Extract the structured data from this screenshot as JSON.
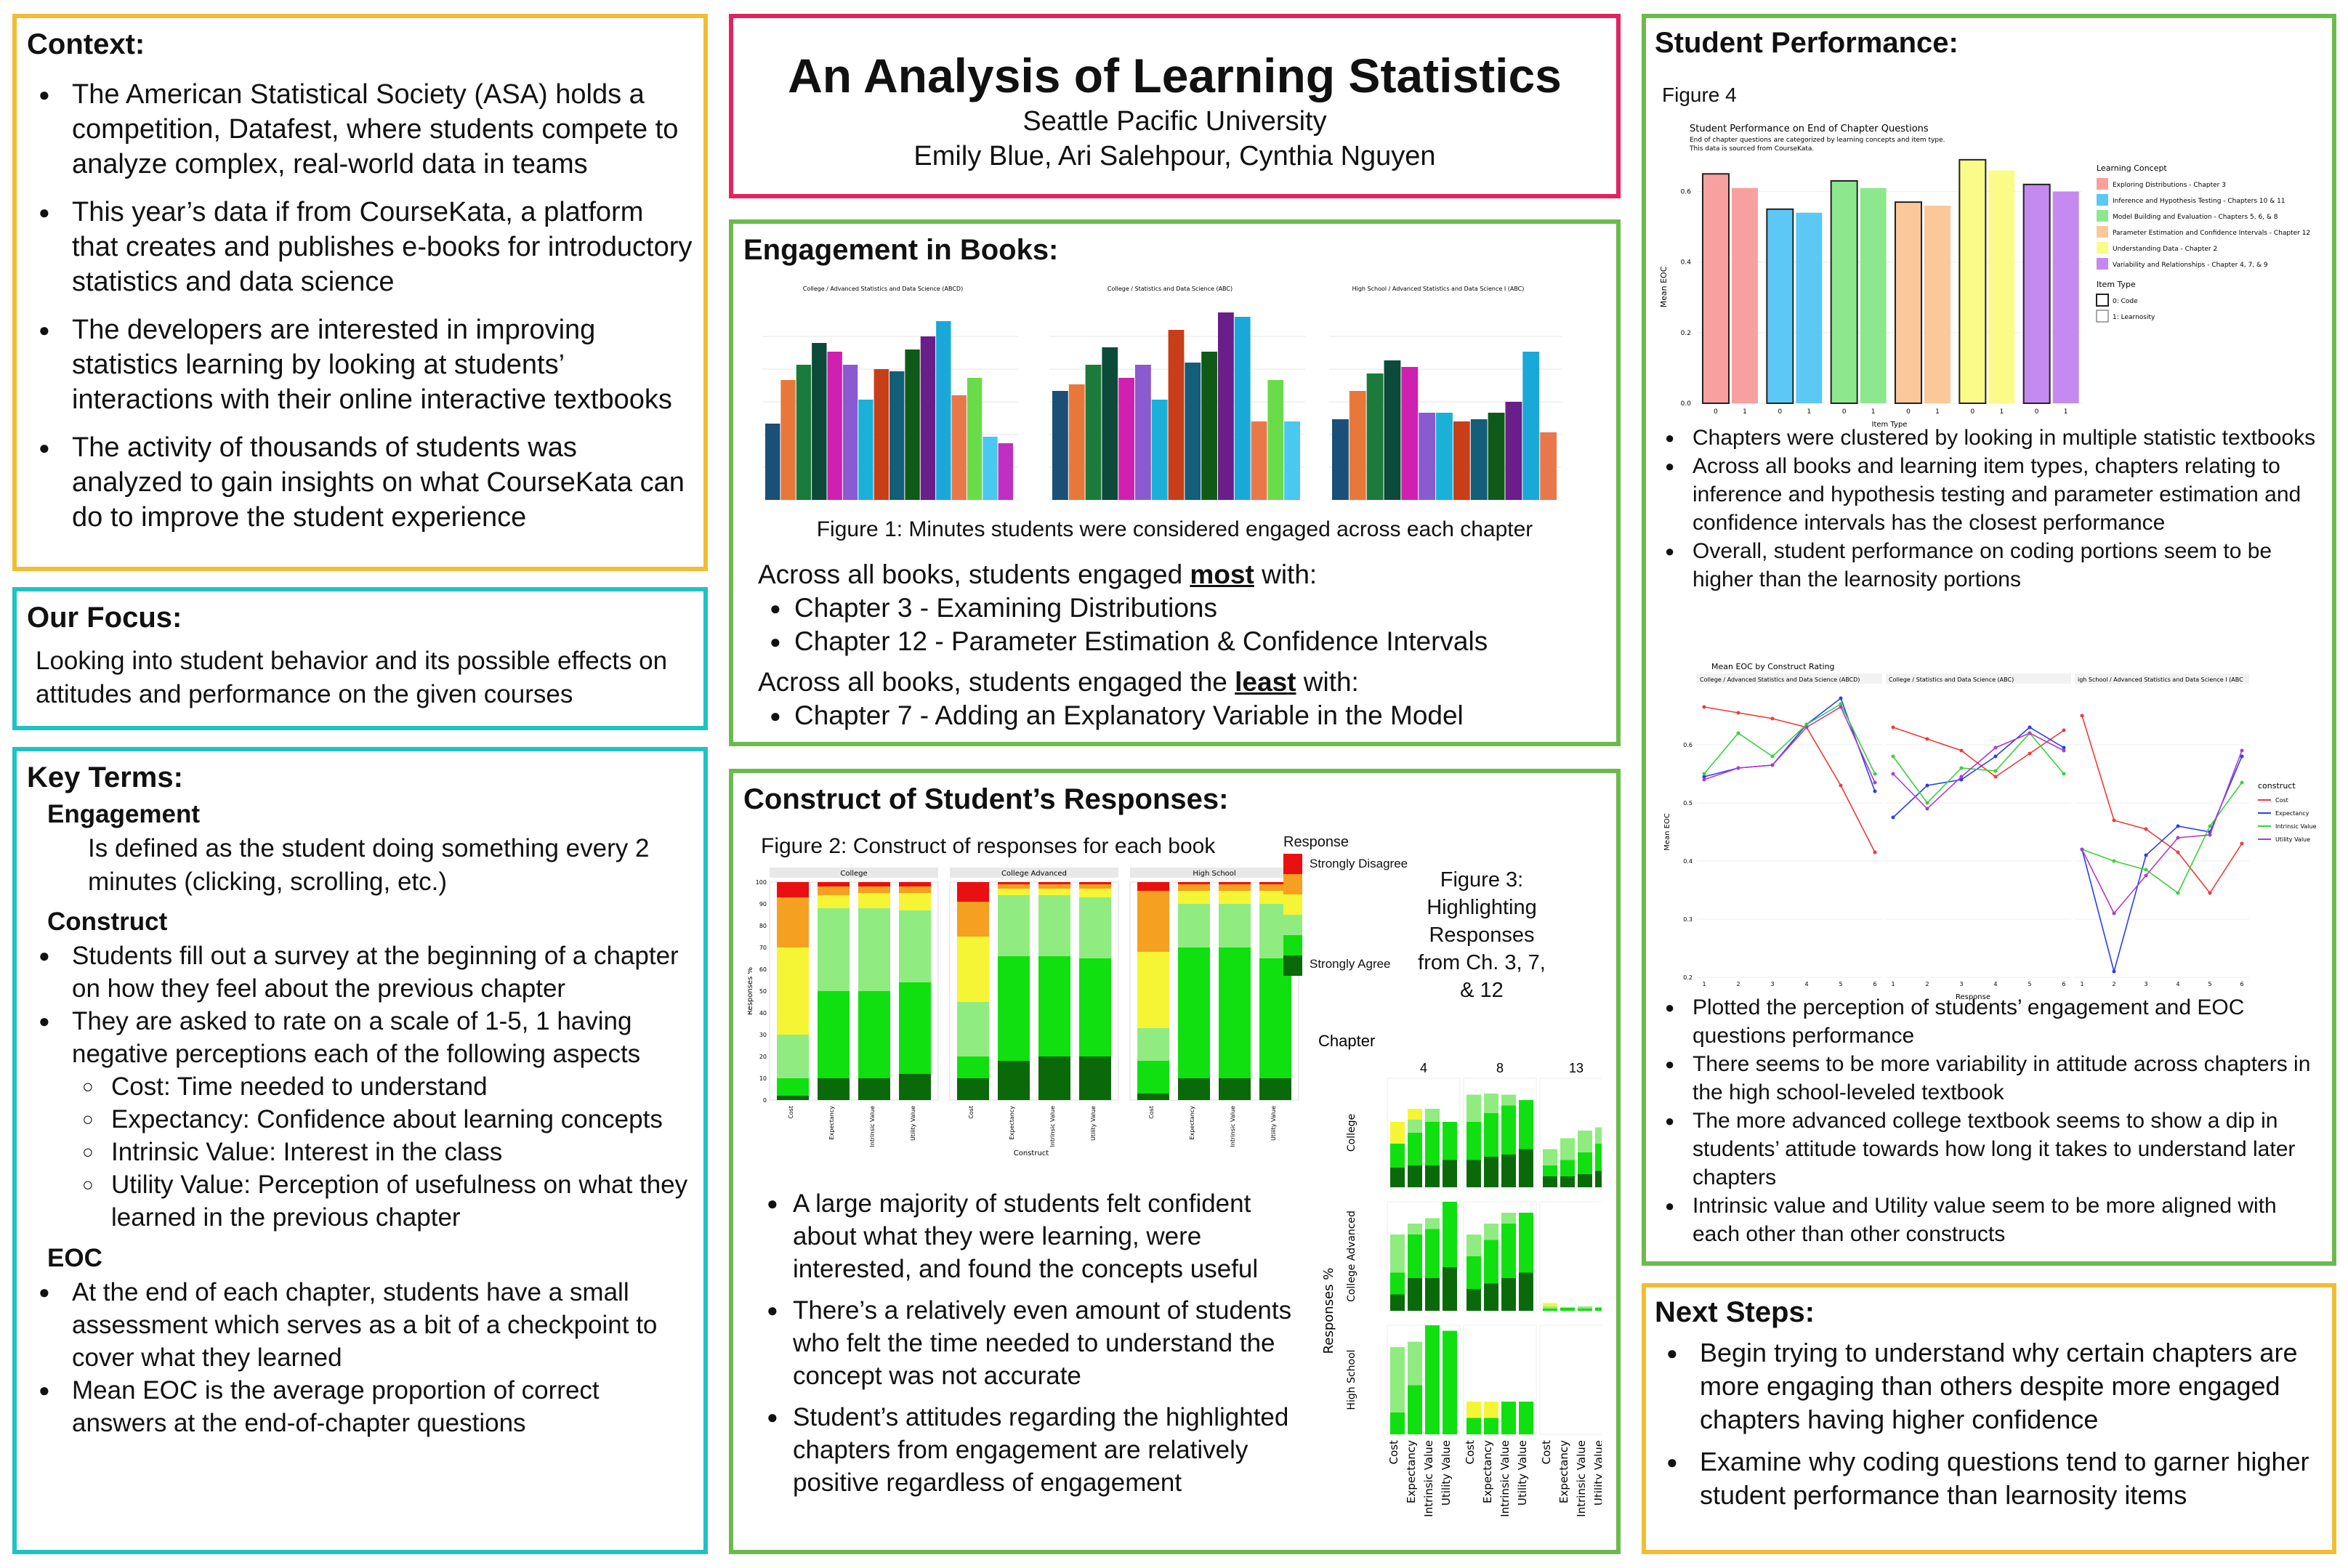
{
  "header": {
    "title": "An Analysis of Learning Statistics",
    "institution": "Seattle Pacific University",
    "authors": "Emily Blue, Ari Salehpour, Cynthia Nguyen"
  },
  "context": {
    "heading": "Context:",
    "bullets": [
      "The American Statistical Society (ASA) holds a competition, Datafest, where students compete to analyze complex, real-world data in teams",
      "This year’s data if from CourseKata, a platform that creates and publishes e-books for introductory statistics and data science",
      "The developers are interested in improving statistics learning by looking at students’ interactions with their online interactive textbooks",
      "The activity of thousands of students was analyzed to gain insights on what CourseKata can do to improve the student experience"
    ]
  },
  "focus": {
    "heading": "Our Focus:",
    "text": "Looking into student behavior and its possible effects on attitudes and performance on the given courses"
  },
  "key_terms": {
    "heading": "Key Terms:",
    "engagement_term": "Engagement",
    "engagement_def": "Is defined as the student doing something every 2 minutes (clicking, scrolling, etc.)",
    "construct_term": "Construct",
    "construct_bullets": [
      "Students fill out a survey at the beginning of a chapter on how they feel about the previous chapter",
      "They are asked to rate on a scale of 1-5, 1 having negative perceptions each of the following aspects"
    ],
    "construct_sub": [
      "Cost: Time needed to understand",
      "Expectancy: Confidence about learning concepts",
      "Intrinsic Value: Interest in the class",
      "Utility Value: Perception of usefulness on what they learned in the previous chapter"
    ],
    "eoc_term": "EOC",
    "eoc_bullets": [
      "At the end of each chapter, students have a small assessment which serves as a bit of a checkpoint to cover what they learned",
      "Mean EOC is the average proportion of correct answers at the end-of-chapter questions"
    ]
  },
  "engagement": {
    "heading": "Engagement in Books:",
    "figure_titles": [
      "College / Advanced Statistics and Data Science (ABCD)",
      "College / Statistics and Data Science (ABC)",
      "High School / Advanced Statistics and Data Science I (ABC)"
    ],
    "caption": "Figure 1: Minutes students were considered engaged across each chapter",
    "most_intro_pre": "Across all books, students engaged ",
    "most_word": "most",
    "most_intro_post": " with:",
    "most_items": [
      "Chapter 3 - Examining Distributions",
      "Chapter 12 -  Parameter Estimation & Confidence Intervals"
    ],
    "least_intro_pre": "Across all books, students engaged the ",
    "least_word": "least",
    "least_intro_post": " with:",
    "least_items": [
      "Chapter 7 - Adding an Explanatory Variable in the Model"
    ]
  },
  "construct": {
    "heading": "Construct of Student’s Responses:",
    "figure2_caption": "Figure 2: Construct of responses for each book",
    "legend_title": "Response",
    "legend_top": "Strongly Disagree",
    "legend_bottom": "Strongly Agree",
    "facets": [
      "College",
      "College Advanced",
      "High School"
    ],
    "constructs": [
      "Cost",
      "Expectancy",
      "Intrinsic Value",
      "Utility Value"
    ],
    "ylabel": "Responses %",
    "xlabel": "Construct",
    "yticks": [
      "0",
      "10",
      "20",
      "30",
      "40",
      "50",
      "60",
      "70",
      "80",
      "90",
      "100"
    ],
    "figure3_caption": "Figure 3: Highlighting Responses from Ch. 3, 7, & 12",
    "chapter_label": "Chapter",
    "chapters": [
      "4",
      "8",
      "13"
    ],
    "fig3_rows": [
      "College",
      "College Advanced",
      "High School"
    ],
    "fig3_ylabel": "Responses %",
    "bullets": [
      "A large majority of students felt confident about what they were learning, were interested, and found the concepts useful",
      "There’s a relatively even amount of students who felt the time needed to understand the concept was not accurate",
      "Student’s attitudes regarding the highlighted chapters from engagement are relatively positive regardless of engagement"
    ]
  },
  "performance": {
    "heading": "Student Performance:",
    "figure4_label": "Figure 4",
    "fig4_title": "Student Performance on End of Chapter Questions",
    "fig4_subtitle1": "End of chapter questions are categorized by learning concepts and item type.",
    "fig4_subtitle2": "This data is sourced from CourseKata.",
    "fig4_legend_title": "Learning Concept",
    "fig4_legend": [
      {
        "label": "Exploring Distributions - Chapter 3",
        "color": "#f8a0a0"
      },
      {
        "label": "Inference and Hypothesis Testing - Chapters 10 & 11",
        "color": "#5bc8f5"
      },
      {
        "label": "Model Building and Evaluation - Chapters 5, 6, & 8",
        "color": "#8de88d"
      },
      {
        "label": "Parameter Estimation and Confidence Intervals - Chapter 12",
        "color": "#fbc89a"
      },
      {
        "label": "Understanding Data - Chapter 2",
        "color": "#fbfb8a"
      },
      {
        "label": "Variability and Relationships - Chapter 4, 7, & 9",
        "color": "#c58af0"
      }
    ],
    "fig4_itemtype_title": "Item Type",
    "fig4_itemtypes": [
      "0: Code",
      "1: Learnosity"
    ],
    "fig4_ylabel": "Mean EOC",
    "fig4_xlabel": "Item Type",
    "fig4_yticks": [
      "0.0",
      "0.2",
      "0.4",
      "0.6"
    ],
    "fig4_xticks": [
      "0",
      "1"
    ],
    "bullets1": [
      "Chapters were clustered by looking in multiple statistic textbooks",
      "Across all books and learning item types, chapters relating to inference and hypothesis testing and parameter estimation and confidence intervals has the closest performance",
      "Overall, student performance on coding portions seem to be higher than the learnosity portions"
    ],
    "fig5_title": "Mean EOC by Construct Rating",
    "fig5_panels": [
      "College / Advanced Statistics and Data Science (ABCD)",
      "College / Statistics and Data Science (ABC)",
      "igh School / Advanced Statistics and Data Science I (ABC"
    ],
    "fig5_ylabel": "Mean EOC",
    "fig5_xlabel": "Response",
    "fig5_yticks": [
      "0.2",
      "0.3",
      "0.4",
      "0.5",
      "0.6"
    ],
    "fig5_xticks": [
      "1",
      "2",
      "3",
      "4",
      "5",
      "6"
    ],
    "fig5_legend_title": "construct",
    "fig5_legend": [
      {
        "label": "Cost",
        "color": "#f03a3a"
      },
      {
        "label": "Expectancy",
        "color": "#2a3ef0"
      },
      {
        "label": "Intrinsic Value",
        "color": "#3ad23a"
      },
      {
        "label": "Utility Value",
        "color": "#b03ad0"
      }
    ],
    "bullets2": [
      "Plotted the perception of students’ engagement and EOC questions performance",
      "There seems to be more variability in attitude across chapters in the high school-leveled textbook",
      "The more advanced college textbook seems to show a dip in students’ attitude towards how long it takes to understand later chapters",
      "Intrinsic value and Utility value seem to be more aligned with each other than other constructs"
    ]
  },
  "next_steps": {
    "heading": "Next Steps:",
    "bullets": [
      "Begin trying to understand why certain chapters are more engaging than others despite more engaged chapters having higher confidence",
      "Examine why coding questions tend to garner higher student performance than learnosity items"
    ]
  },
  "chart_data": [
    {
      "type": "bar",
      "title": "College / Advanced Statistics and Data Science (ABCD)",
      "values": [
        0.35,
        0.55,
        0.62,
        0.72,
        0.68,
        0.62,
        0.46,
        0.6,
        0.59,
        0.69,
        0.75,
        0.82,
        0.48,
        0.56,
        0.29,
        0.26
      ]
    },
    {
      "type": "bar",
      "title": "College / Statistics and Data Science (ABC)",
      "values": [
        0.5,
        0.53,
        0.62,
        0.7,
        0.56,
        0.62,
        0.46,
        0.78,
        0.63,
        0.68,
        0.86,
        0.84,
        0.36,
        0.55,
        0.36
      ]
    },
    {
      "type": "bar",
      "title": "High School / Advanced Statistics and Data Science I (ABC)",
      "values": [
        0.37,
        0.5,
        0.58,
        0.64,
        0.61,
        0.4,
        0.4,
        0.36,
        0.37,
        0.4,
        0.45,
        0.68,
        0.31
      ]
    },
    {
      "type": "bar",
      "title": "Figure 4: Student Performance on End of Chapter Questions",
      "categories": [
        "Exploring Distributions - Chapter 3",
        "Inference and Hypothesis Testing - Chapters 10 & 11",
        "Model Building and Evaluation - Chapters 5, 6, & 8",
        "Parameter Estimation and Confidence Intervals - Chapter 12",
        "Understanding Data - Chapter 2",
        "Variability and Relationships - Chapter 4, 7, & 9"
      ],
      "series": [
        {
          "name": "0: Code",
          "values": [
            0.65,
            0.55,
            0.63,
            0.57,
            0.69,
            0.62
          ]
        },
        {
          "name": "1: Learnosity",
          "values": [
            0.61,
            0.54,
            0.61,
            0.56,
            0.66,
            0.6
          ]
        }
      ],
      "ylim": [
        0,
        0.7
      ]
    },
    {
      "type": "line",
      "title": "Mean EOC by Construct Rating",
      "x": [
        1,
        2,
        3,
        4,
        5,
        6
      ],
      "ylim": [
        0.2,
        0.7
      ],
      "panels": [
        {
          "name": "College / Advanced Statistics and Data Science (ABCD)",
          "series": [
            {
              "name": "Cost",
              "values": [
                0.665,
                0.655,
                0.645,
                0.63,
                0.53,
                0.415
              ]
            },
            {
              "name": "Expectancy",
              "values": [
                0.545,
                0.56,
                0.565,
                0.635,
                0.68,
                0.52
              ]
            },
            {
              "name": "Intrinsic Value",
              "values": [
                0.55,
                0.62,
                0.58,
                0.635,
                0.67,
                0.55
              ]
            },
            {
              "name": "Utility Value",
              "values": [
                0.54,
                0.56,
                0.565,
                0.63,
                0.665,
                0.535
              ]
            }
          ]
        },
        {
          "name": "College / Statistics and Data Science (ABC)",
          "series": [
            {
              "name": "Cost",
              "values": [
                0.63,
                0.61,
                0.59,
                0.545,
                0.585,
                0.625
              ]
            },
            {
              "name": "Expectancy",
              "values": [
                0.475,
                0.53,
                0.54,
                0.58,
                0.63,
                0.595
              ]
            },
            {
              "name": "Intrinsic Value",
              "values": [
                0.58,
                0.5,
                0.56,
                0.555,
                0.62,
                0.55
              ]
            },
            {
              "name": "Utility Value",
              "values": [
                0.55,
                0.49,
                0.545,
                0.595,
                0.62,
                0.59
              ]
            }
          ]
        },
        {
          "name": "igh School / Advanced Statistics and Data Science I (ABC",
          "series": [
            {
              "name": "Cost",
              "values": [
                0.65,
                0.47,
                0.455,
                0.415,
                0.345,
                0.43
              ]
            },
            {
              "name": "Expectancy",
              "values": [
                0.42,
                0.21,
                0.41,
                0.46,
                0.45,
                0.58
              ]
            },
            {
              "name": "Intrinsic Value",
              "values": [
                0.42,
                0.4,
                0.385,
                0.345,
                0.46,
                0.535
              ]
            },
            {
              "name": "Utility Value",
              "values": [
                0.42,
                0.31,
                0.375,
                0.44,
                0.445,
                0.59
              ]
            }
          ]
        }
      ]
    }
  ]
}
